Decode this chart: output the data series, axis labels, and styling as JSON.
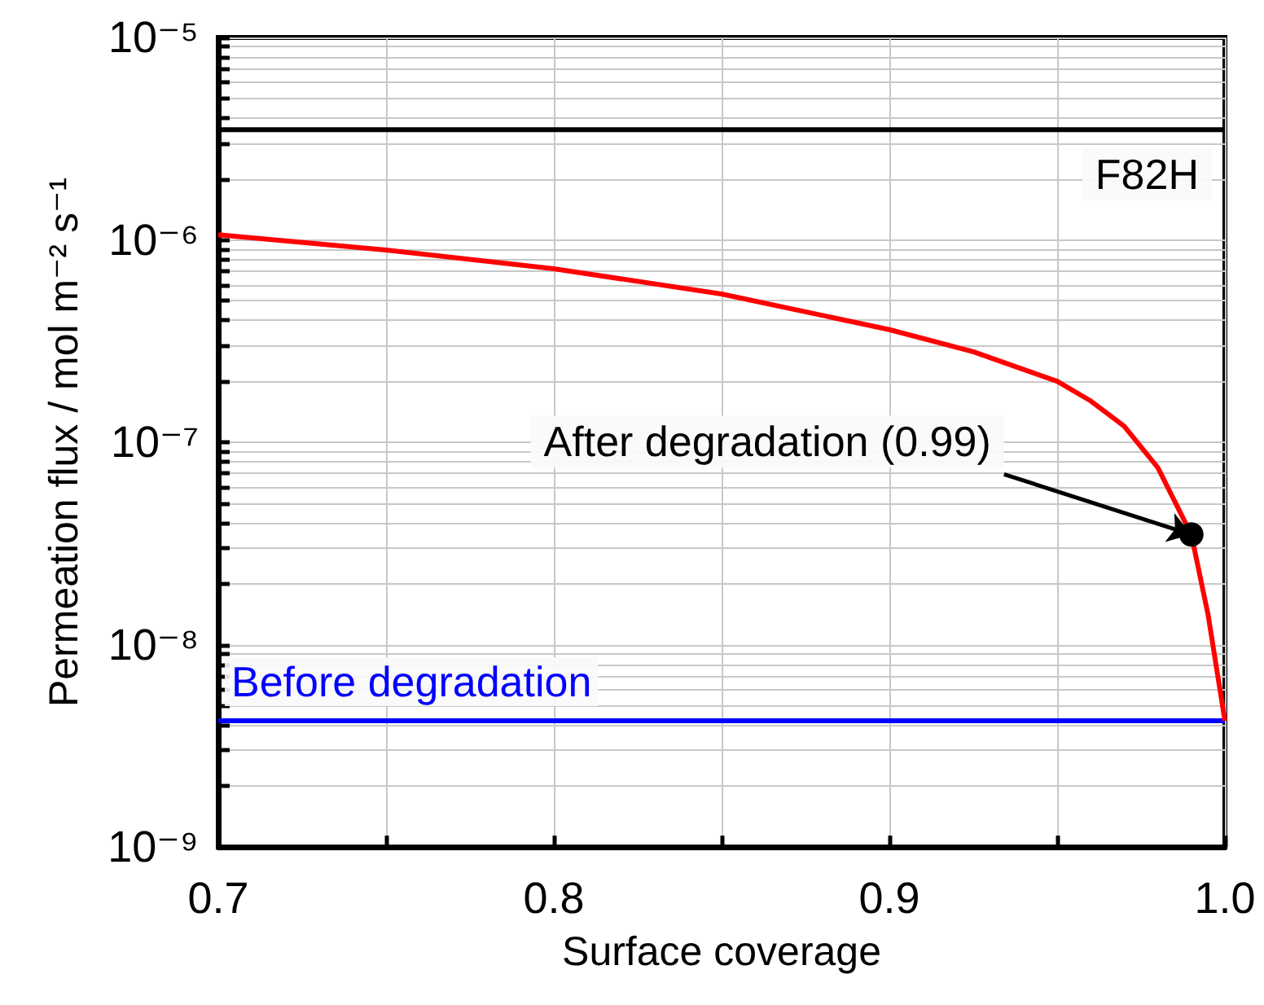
{
  "chart_data": {
    "type": "line",
    "xlabel": "Surface coverage",
    "ylabel": "Permeation flux / mol m⁻² s⁻¹",
    "x": [
      0.7,
      0.75,
      0.8,
      0.85,
      0.9,
      0.925,
      0.95,
      0.96,
      0.97,
      0.98,
      0.99,
      0.995,
      1.0
    ],
    "series": [
      {
        "color": "#ff0000",
        "marker": "none",
        "values": [
          1.06e-06,
          8.9e-07,
          7.2e-07,
          5.4e-07,
          3.6e-07,
          2.8e-07,
          2e-07,
          1.6e-07,
          1.2e-07,
          7.5e-08,
          3.5e-08,
          1.4e-08,
          4.2e-09
        ]
      },
      {
        "type": "scatter",
        "color": "#000000",
        "marker": "circle",
        "x": [
          0.99
        ],
        "values": [
          3.5e-08
        ]
      }
    ],
    "ref_lines": [
      {
        "axis": "y",
        "value": 3.5e-06,
        "color": "#000000"
      },
      {
        "axis": "y",
        "value": 4.2e-09,
        "color": "#0000ff",
        "label": "Before degradation"
      }
    ],
    "annotations": [
      "F82H",
      {
        "text": "After degradation (0.99)",
        "x": 0.99,
        "y": 3.5e-08
      }
    ],
    "xlim": [
      0.7,
      1.0
    ],
    "xticks": [
      {
        "value": 0.7,
        "label": "0.7"
      },
      {
        "value": 0.75,
        "label": null
      },
      {
        "value": 0.8,
        "label": "0.8"
      },
      {
        "value": 0.85,
        "label": null
      },
      {
        "value": 0.9,
        "label": "0.9"
      },
      {
        "value": 0.95,
        "label": null
      },
      {
        "value": 1.0,
        "label": "1.0"
      }
    ],
    "ylim": [
      1e-09,
      1e-05
    ],
    "yticks": [
      {
        "value": 1e-09,
        "label": "10⁻⁹"
      },
      {
        "value": 2e-09,
        "label": null
      },
      {
        "value": 3e-09,
        "label": null
      },
      {
        "value": 4e-09,
        "label": null
      },
      {
        "value": 5e-09,
        "label": null
      },
      {
        "value": 6e-09,
        "label": null
      },
      {
        "value": 7e-09,
        "label": null
      },
      {
        "value": 8e-09,
        "label": null
      },
      {
        "value": 9e-09,
        "label": null
      },
      {
        "value": 1e-08,
        "label": "10⁻⁸"
      },
      {
        "value": 2e-08,
        "label": null
      },
      {
        "value": 3e-08,
        "label": null
      },
      {
        "value": 4e-08,
        "label": null
      },
      {
        "value": 5e-08,
        "label": null
      },
      {
        "value": 6e-08,
        "label": null
      },
      {
        "value": 7e-08,
        "label": null
      },
      {
        "value": 8e-08,
        "label": null
      },
      {
        "value": 9e-08,
        "label": null
      },
      {
        "value": 1e-07,
        "label": "10⁻⁷"
      },
      {
        "value": 2e-07,
        "label": null
      },
      {
        "value": 3e-07,
        "label": null
      },
      {
        "value": 4e-07,
        "label": null
      },
      {
        "value": 5e-07,
        "label": null
      },
      {
        "value": 6e-07,
        "label": null
      },
      {
        "value": 7e-07,
        "label": null
      },
      {
        "value": 8e-07,
        "label": null
      },
      {
        "value": 9e-07,
        "label": null
      },
      {
        "value": 1e-06,
        "label": "10⁻⁶"
      },
      {
        "value": 2e-06,
        "label": null
      },
      {
        "value": 3e-06,
        "label": null
      },
      {
        "value": 4e-06,
        "label": null
      },
      {
        "value": 5e-06,
        "label": null
      },
      {
        "value": 6e-06,
        "label": null
      },
      {
        "value": 7e-06,
        "label": null
      },
      {
        "value": 8e-06,
        "label": null
      },
      {
        "value": 9e-06,
        "label": null
      },
      {
        "value": 1e-05,
        "label": "10⁻⁵"
      }
    ],
    "log": "y",
    "grid": true,
    "line_style": "solid"
  }
}
